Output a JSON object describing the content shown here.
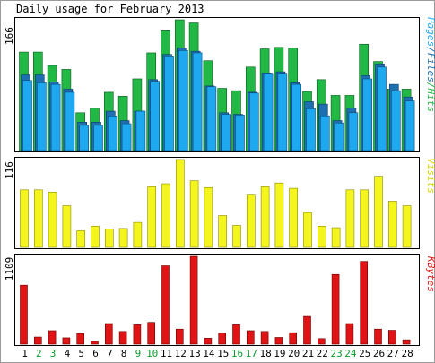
{
  "chart_data": [
    {
      "type": "bar",
      "title": "Daily usage for February 2013",
      "ylabel": "Pages/Files/Hits",
      "ymax_label": "166",
      "categories": [
        "1",
        "2",
        "3",
        "4",
        "5",
        "6",
        "7",
        "8",
        "9",
        "10",
        "11",
        "12",
        "13",
        "14",
        "15",
        "16",
        "17",
        "18",
        "19",
        "20",
        "21",
        "22",
        "23",
        "24",
        "25",
        "26",
        "27",
        "28"
      ],
      "weekend_days": [
        "2",
        "3",
        "9",
        "10",
        "16",
        "17",
        "23",
        "24"
      ],
      "ylim": [
        0,
        166
      ],
      "series": [
        {
          "name": "Hits",
          "color": "#22b845",
          "values": [
            125,
            125,
            108,
            103,
            48,
            54,
            74,
            69,
            91,
            124,
            152,
            166,
            162,
            114,
            79,
            76,
            106,
            129,
            131,
            130,
            75,
            90,
            70,
            70,
            135,
            113,
            78,
            78
          ]
        },
        {
          "name": "Files",
          "color": "#1e6fb0",
          "values": [
            96,
            96,
            87,
            78,
            36,
            36,
            50,
            38,
            50,
            90,
            122,
            130,
            126,
            82,
            48,
            46,
            74,
            98,
            100,
            86,
            62,
            59,
            38,
            54,
            95,
            110,
            84,
            68
          ]
        },
        {
          "name": "Pages",
          "color": "#1ea8f0",
          "values": [
            89,
            86,
            84,
            74,
            32,
            32,
            44,
            34,
            50,
            88,
            119,
            127,
            124,
            81,
            46,
            45,
            73,
            97,
            97,
            84,
            53,
            44,
            35,
            48,
            91,
            106,
            76,
            63
          ]
        }
      ]
    },
    {
      "type": "bar",
      "ylabel": "Visits",
      "ymax_label": "116",
      "ylim": [
        0,
        116
      ],
      "series": [
        {
          "name": "Visits",
          "color": "#f5f51e",
          "values": [
            76,
            76,
            73,
            55,
            22,
            28,
            24,
            25,
            33,
            80,
            84,
            116,
            88,
            79,
            42,
            29,
            69,
            80,
            85,
            78,
            46,
            28,
            26,
            76,
            76,
            94,
            61,
            55
          ]
        }
      ]
    },
    {
      "type": "bar",
      "ylabel": "KBytes",
      "ymax_label": "1109",
      "ylim": [
        0,
        1109
      ],
      "series": [
        {
          "name": "KBytes",
          "color": "#e01414",
          "values": [
            745,
            90,
            170,
            80,
            135,
            35,
            260,
            160,
            245,
            275,
            990,
            190,
            1109,
            75,
            140,
            245,
            170,
            160,
            85,
            145,
            350,
            70,
            880,
            260,
            1045,
            190,
            175,
            55
          ]
        }
      ]
    }
  ]
}
